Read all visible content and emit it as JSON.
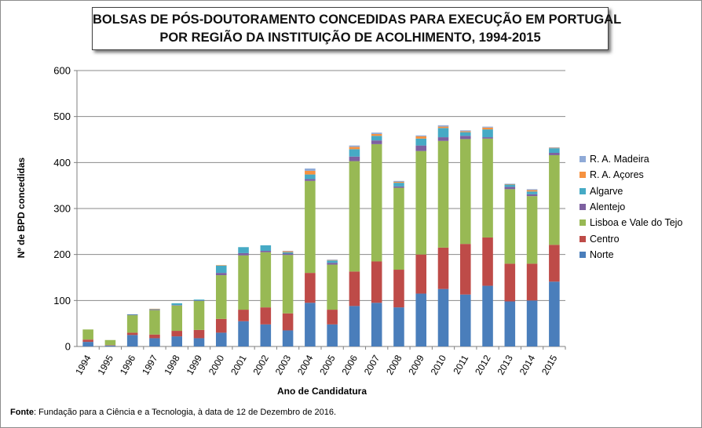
{
  "title_line1": "BOLSAS DE PÓS-DOUTORAMENTO  CONCEDIDAS PARA EXECUÇÃO EM PORTUGAL",
  "title_line2": "POR REGIÃO DA INSTITUIÇÃO DE ACOLHIMENTO, 1994-2015",
  "source_label": "Fonte",
  "source_text": ": Fundação para a Ciência e a Tecnologia, à data de 12 de Dezembro de 2016.",
  "chart_data": {
    "type": "bar",
    "stacked": true,
    "title": "BOLSAS DE PÓS-DOUTORAMENTO  CONCEDIDAS PARA EXECUÇÃO EM PORTUGAL POR REGIÃO DA INSTITUIÇÃO DE ACOLHIMENTO, 1994-2015",
    "xlabel": "Ano de Candidatura",
    "ylabel": "Nº de BPD concedidas",
    "ylim": [
      0,
      600
    ],
    "yticks": [
      0,
      100,
      200,
      300,
      400,
      500,
      600
    ],
    "grid": true,
    "legend_position": "right",
    "categories": [
      "1994",
      "1995",
      "1996",
      "1997",
      "1998",
      "1999",
      "2000",
      "2001",
      "2002",
      "2003",
      "2004",
      "2005",
      "2006",
      "2007",
      "2008",
      "2009",
      "2010",
      "2011",
      "2012",
      "2013",
      "2014",
      "2015"
    ],
    "series": [
      {
        "name": "Norte",
        "color": "#4a7ebb",
        "values": [
          10,
          2,
          25,
          18,
          22,
          18,
          30,
          55,
          48,
          35,
          95,
          48,
          88,
          95,
          85,
          115,
          125,
          113,
          132,
          98,
          100,
          141
        ]
      },
      {
        "name": "Centro",
        "color": "#be4b48",
        "values": [
          5,
          1,
          5,
          8,
          12,
          18,
          30,
          25,
          37,
          37,
          65,
          32,
          75,
          90,
          82,
          85,
          90,
          110,
          105,
          82,
          80,
          80
        ]
      },
      {
        "name": "Lisboa e Vale do Tejo",
        "color": "#98b954",
        "values": [
          22,
          11,
          38,
          53,
          55,
          63,
          95,
          118,
          120,
          127,
          200,
          98,
          240,
          255,
          178,
          225,
          232,
          228,
          215,
          162,
          147,
          195
        ]
      },
      {
        "name": "Alentejo",
        "color": "#7d60a0",
        "values": [
          0,
          0,
          1,
          1,
          1,
          1,
          5,
          5,
          3,
          3,
          4,
          4,
          10,
          8,
          3,
          12,
          8,
          7,
          3,
          5,
          4,
          5
        ]
      },
      {
        "name": "Algarve",
        "color": "#46aac5",
        "values": [
          0,
          0,
          1,
          1,
          4,
          2,
          16,
          13,
          12,
          3,
          10,
          5,
          16,
          10,
          8,
          15,
          20,
          8,
          17,
          5,
          6,
          10
        ]
      },
      {
        "name": "R. A. Açores",
        "color": "#f69240",
        "values": [
          0,
          0,
          0,
          1,
          0,
          0,
          1,
          0,
          0,
          2,
          8,
          1,
          5,
          4,
          2,
          5,
          3,
          2,
          4,
          1,
          3,
          1
        ]
      },
      {
        "name": "R. A. Madeira",
        "color": "#8faad7",
        "values": [
          0,
          0,
          0,
          0,
          0,
          0,
          0,
          0,
          0,
          1,
          5,
          1,
          3,
          3,
          2,
          2,
          3,
          2,
          2,
          1,
          2,
          1
        ]
      }
    ]
  }
}
